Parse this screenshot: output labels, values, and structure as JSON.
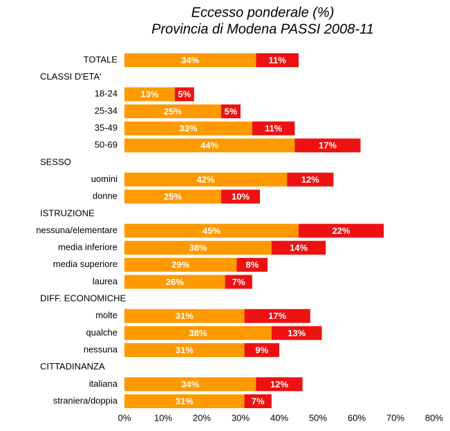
{
  "chart_data": {
    "type": "stacked-bar-horizontal",
    "title": "Eccesso ponderale (%)",
    "subtitle": "Provincia di Modena PASSI 2008-11",
    "categories": [
      "TOTALE",
      "CLASSI D'ETA'",
      "18-24",
      "25-34",
      "35-49",
      "50-69",
      "SESSO",
      "uomini",
      "donne",
      "ISTRUZIONE",
      "nessuna/elementare",
      "media inferiore",
      "media superiore",
      "laurea",
      "DIFF. ECONOMICHE",
      "molte",
      "qualche",
      "nessuna",
      "CITTADINANZA",
      "italiana",
      "straniera/doppia"
    ],
    "series": [
      {
        "color": "#ff9900",
        "values": [
          34,
          null,
          13,
          25,
          33,
          44,
          null,
          42,
          25,
          null,
          45,
          38,
          29,
          26,
          null,
          31,
          38,
          31,
          null,
          34,
          31
        ],
        "value_labels": [
          "34%",
          null,
          "13%",
          "25%",
          "33%",
          "44%",
          null,
          "42%",
          "25%",
          null,
          "45%",
          "38%",
          "29%",
          "26%",
          null,
          "31%",
          "38%",
          "31%",
          null,
          "34%",
          "31%"
        ]
      },
      {
        "color": "#ee1111",
        "values": [
          11,
          null,
          5,
          5,
          11,
          17,
          null,
          12,
          10,
          null,
          22,
          14,
          8,
          7,
          null,
          17,
          13,
          9,
          null,
          12,
          7
        ],
        "value_labels": [
          "11%",
          null,
          "5%",
          "5%",
          "11%",
          "17%",
          null,
          "12%",
          "10%",
          null,
          "22%",
          "14%",
          "8%",
          "7%",
          null,
          "17%",
          "13%",
          "9%",
          null,
          "12%",
          "7%"
        ]
      }
    ],
    "xlim": [
      0,
      80
    ],
    "xticks": [
      {
        "value": 0,
        "label": "0%"
      },
      {
        "value": 10,
        "label": "10%"
      },
      {
        "value": 20,
        "label": "20%"
      },
      {
        "value": 30,
        "label": "30%"
      },
      {
        "value": 40,
        "label": "40%"
      },
      {
        "value": 50,
        "label": "50%"
      },
      {
        "value": 60,
        "label": "60%"
      },
      {
        "value": 70,
        "label": "70%"
      },
      {
        "value": 80,
        "label": "80%"
      }
    ]
  }
}
